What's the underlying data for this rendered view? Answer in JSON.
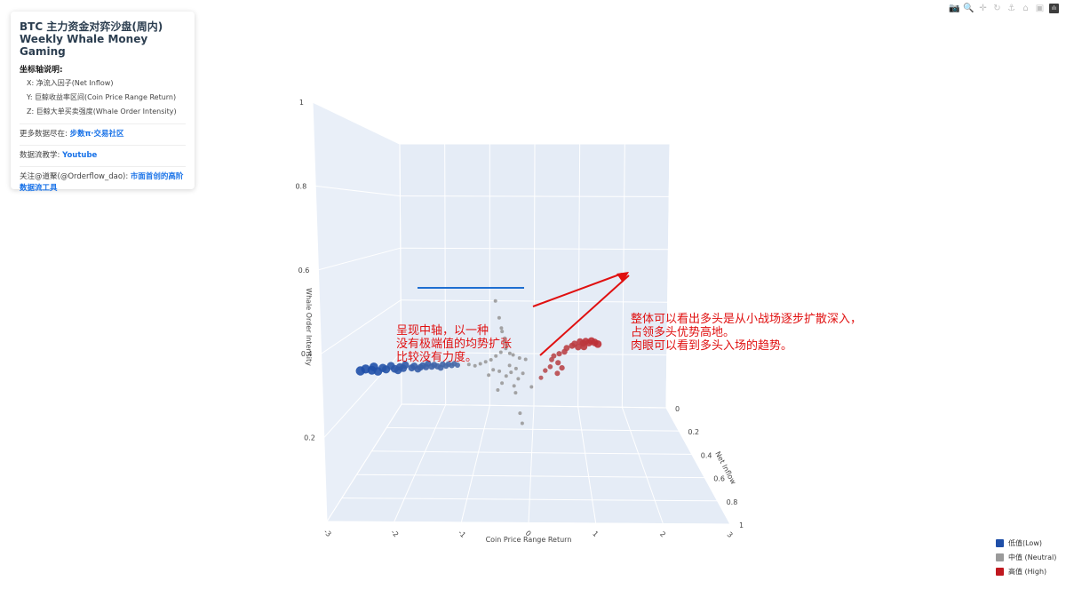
{
  "panel": {
    "title": "BTC 主力资金对弈沙盘(周内)",
    "subtitle": "Weekly Whale Money Gaming",
    "axis_heading": "坐标轴说明:",
    "axis_x": "X: 净流入因子(Net Inflow)",
    "axis_y": "Y: 巨鲸收益率区间(Coin Price Range Return)",
    "axis_z": "Z: 巨鲸大单买卖强度(Whale Order Intensity)",
    "more_prefix": "更多数据尽在: ",
    "more_link": "步数π·交易社区",
    "tutorial_prefix": "数据流教学: ",
    "tutorial_link": "Youtube",
    "follow_prefix": "关注@道聚(@Orderflow_dao): ",
    "follow_link": "市面首创的高阶数据流工具"
  },
  "toolbar": [
    {
      "name": "camera-icon",
      "glyph": "📷"
    },
    {
      "name": "zoom-icon",
      "glyph": "🔍"
    },
    {
      "name": "pan-icon",
      "glyph": "✛"
    },
    {
      "name": "rotate-icon",
      "glyph": "↻"
    },
    {
      "name": "orbit-icon",
      "glyph": "⚓"
    },
    {
      "name": "home-icon",
      "glyph": "⌂"
    },
    {
      "name": "reset-camera-icon",
      "glyph": "▣"
    },
    {
      "name": "plotly-logo-icon",
      "glyph": "ılı"
    }
  ],
  "legend": [
    {
      "label": "低值(Low)",
      "color": "#1f4fa8"
    },
    {
      "label": "中值 (Neutral)",
      "color": "#9a9a9a"
    },
    {
      "label": "高值 (High)",
      "color": "#c0181f"
    }
  ],
  "annotations": {
    "left": [
      "呈现中轴，以一种",
      "没有极端值的均势扩张",
      "比较没有力度。"
    ],
    "right": [
      "整体可以看出多头是从小战场逐步扩散深入，",
      "占领多头优势高地。",
      "肉眼可以看到多头入场的趋势。"
    ],
    "color": "#e01010"
  },
  "chart_data": {
    "type": "scatter3d",
    "axes": {
      "x": {
        "title": "Net Inflow",
        "ticks": [
          "0",
          "0.2",
          "0.4",
          "0.6",
          "0.8",
          "1"
        ],
        "range": [
          0,
          1
        ]
      },
      "y": {
        "title": "Coin Price Range Return",
        "ticks": [
          "-3",
          "-2",
          "-1",
          "0",
          "1",
          "2",
          "3"
        ],
        "range": [
          -3,
          3
        ]
      },
      "z": {
        "title": "Whale Order Intensity",
        "ticks": [
          "0.2",
          "0.4",
          "0.6",
          "0.8",
          "1"
        ],
        "range": [
          0,
          1
        ]
      }
    },
    "series": [
      {
        "name": "低值(Low)",
        "color": "#1f4fa8",
        "points": [
          [
            -2.6,
            0.6
          ],
          [
            -2.5,
            0.61
          ],
          [
            -2.4,
            0.6
          ],
          [
            -2.35,
            0.62
          ],
          [
            -2.3,
            0.59
          ],
          [
            -2.2,
            0.61
          ],
          [
            -2.15,
            0.6
          ],
          [
            -2.05,
            0.62
          ],
          [
            -2.0,
            0.6
          ],
          [
            -1.95,
            0.59
          ],
          [
            -1.9,
            0.61
          ],
          [
            -1.85,
            0.6
          ],
          [
            -1.8,
            0.62
          ],
          [
            -1.7,
            0.6
          ],
          [
            -1.65,
            0.61
          ],
          [
            -1.6,
            0.59
          ],
          [
            -1.55,
            0.6
          ],
          [
            -1.5,
            0.61
          ],
          [
            -1.45,
            0.6
          ],
          [
            -1.4,
            0.62
          ],
          [
            -1.35,
            0.6
          ],
          [
            -1.3,
            0.61
          ],
          [
            -1.25,
            0.6
          ],
          [
            -1.2,
            0.59
          ],
          [
            -1.15,
            0.61
          ],
          [
            -1.1,
            0.6
          ],
          [
            -1.05,
            0.61
          ],
          [
            -1.0,
            0.6
          ],
          [
            -0.95,
            0.61
          ],
          [
            -0.9,
            0.6
          ]
        ]
      },
      {
        "name": "中值 (Neutral)",
        "color": "#9a9a9a",
        "points": [
          [
            0.0,
            0.96
          ],
          [
            0.0,
            0.86
          ],
          [
            0.0,
            0.8
          ],
          [
            0.0,
            0.78
          ],
          [
            0.02,
            0.74
          ],
          [
            0.0,
            0.72
          ],
          [
            0.03,
            0.7
          ],
          [
            0.0,
            0.68
          ],
          [
            -0.1,
            0.66
          ],
          [
            0.05,
            0.65
          ],
          [
            -0.2,
            0.64
          ],
          [
            0.1,
            0.64
          ],
          [
            -0.3,
            0.62
          ],
          [
            0.2,
            0.62
          ],
          [
            -0.4,
            0.61
          ],
          [
            0.3,
            0.61
          ],
          [
            -0.5,
            0.6
          ],
          [
            -0.6,
            0.59
          ],
          [
            -0.7,
            0.6
          ],
          [
            0.0,
            0.58
          ],
          [
            -0.3,
            0.56
          ],
          [
            0.1,
            0.56
          ],
          [
            -0.2,
            0.55
          ],
          [
            0.0,
            0.54
          ],
          [
            -0.4,
            0.53
          ],
          [
            0.2,
            0.53
          ],
          [
            -0.1,
            0.52
          ],
          [
            0.1,
            0.5
          ],
          [
            -0.2,
            0.48
          ],
          [
            0.0,
            0.46
          ],
          [
            0.3,
            0.45
          ],
          [
            -0.3,
            0.44
          ],
          [
            0.0,
            0.42
          ],
          [
            0.0,
            0.3
          ],
          [
            0.0,
            0.24
          ]
        ]
      },
      {
        "name": "高值 (High)",
        "color": "#c0181f",
        "points": [
          [
            1.2,
            0.68
          ],
          [
            1.3,
            0.69
          ],
          [
            1.35,
            0.68
          ],
          [
            1.4,
            0.69
          ],
          [
            1.45,
            0.68
          ],
          [
            1.5,
            0.69
          ],
          [
            1.55,
            0.68
          ],
          [
            1.6,
            0.67
          ],
          [
            1.25,
            0.66
          ],
          [
            1.35,
            0.66
          ],
          [
            1.15,
            0.67
          ],
          [
            1.05,
            0.66
          ],
          [
            1.0,
            0.64
          ],
          [
            0.9,
            0.63
          ],
          [
            0.8,
            0.62
          ],
          [
            0.75,
            0.6
          ],
          [
            0.85,
            0.58
          ],
          [
            0.7,
            0.56
          ],
          [
            0.9,
            0.55
          ],
          [
            0.6,
            0.54
          ],
          [
            0.8,
            0.52
          ],
          [
            0.5,
            0.5
          ]
        ]
      }
    ],
    "grid": true,
    "legend_position": "bottom-right"
  }
}
